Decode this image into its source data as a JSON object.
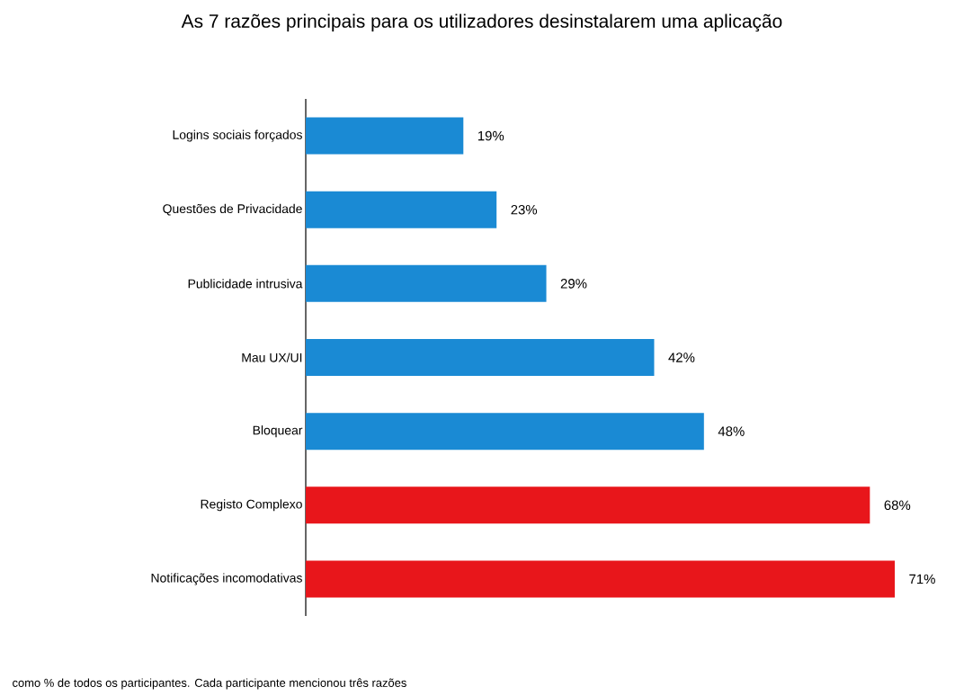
{
  "chart_data": {
    "type": "bar",
    "orientation": "horizontal",
    "title": "As 7 razões principais para os utilizadores desinstalarem uma aplicação",
    "categories": [
      "Logins sociais forçados",
      "Questões de Privacidade",
      "Publicidade intrusiva",
      "Mau UX/UI",
      "Bloquear",
      "Registo Complexo",
      "Notificações incomodativas"
    ],
    "values": [
      19,
      23,
      29,
      42,
      48,
      68,
      71
    ],
    "value_labels": [
      "19%",
      "23%",
      "29%",
      "42%",
      "48%",
      "68%",
      "71%"
    ],
    "colors": [
      "#1a8ad4",
      "#1a8ad4",
      "#1a8ad4",
      "#1a8ad4",
      "#1a8ad4",
      "#e8161b",
      "#e8161b"
    ],
    "annotations": [
      "como % de todos os participantes. Cada participante mencionou três razões"
    ]
  }
}
